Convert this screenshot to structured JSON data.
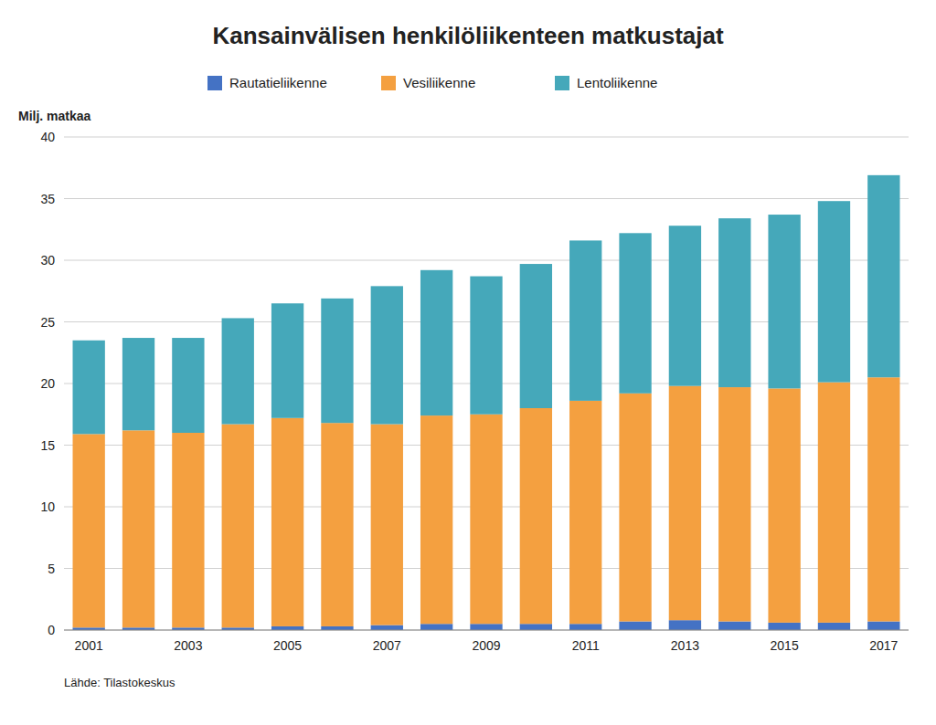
{
  "chart_data": {
    "type": "bar",
    "stacked": true,
    "title": "Kansainvälisen henkilöliikenteen matkustajat",
    "ylabel": "Milj. matkaa",
    "annotations": [
      "Lähde: Tilastokeskus"
    ],
    "categories": [
      "2001",
      null,
      "2003",
      null,
      "2005",
      null,
      "2007",
      null,
      "2009",
      null,
      "2011",
      null,
      "2013",
      null,
      "2015",
      null,
      "2017"
    ],
    "series": [
      {
        "name": "Rautatieliikenne",
        "color": "#4472c4",
        "values": [
          0.2,
          0.2,
          0.2,
          0.2,
          0.3,
          0.3,
          0.4,
          0.5,
          0.5,
          0.5,
          0.5,
          0.7,
          0.8,
          0.7,
          0.6,
          0.6,
          0.7
        ]
      },
      {
        "name": "Vesiliikenne",
        "color": "#f4a040",
        "values": [
          15.7,
          16.0,
          15.8,
          16.5,
          16.9,
          16.5,
          16.3,
          16.9,
          17.0,
          17.5,
          18.1,
          18.5,
          19.0,
          19.0,
          19.0,
          19.5,
          19.8
        ]
      },
      {
        "name": "Lentoliikenne",
        "color": "#45a8ba",
        "values": [
          7.6,
          7.5,
          7.7,
          8.6,
          9.3,
          10.1,
          11.2,
          11.8,
          11.2,
          11.7,
          13.0,
          13.0,
          13.0,
          13.7,
          14.1,
          14.7,
          16.4
        ]
      }
    ],
    "ylim": [
      0,
      40
    ],
    "yticks": [
      0,
      5,
      10,
      15,
      20,
      25,
      30,
      35,
      40
    ],
    "grid": true,
    "legend": "top"
  }
}
